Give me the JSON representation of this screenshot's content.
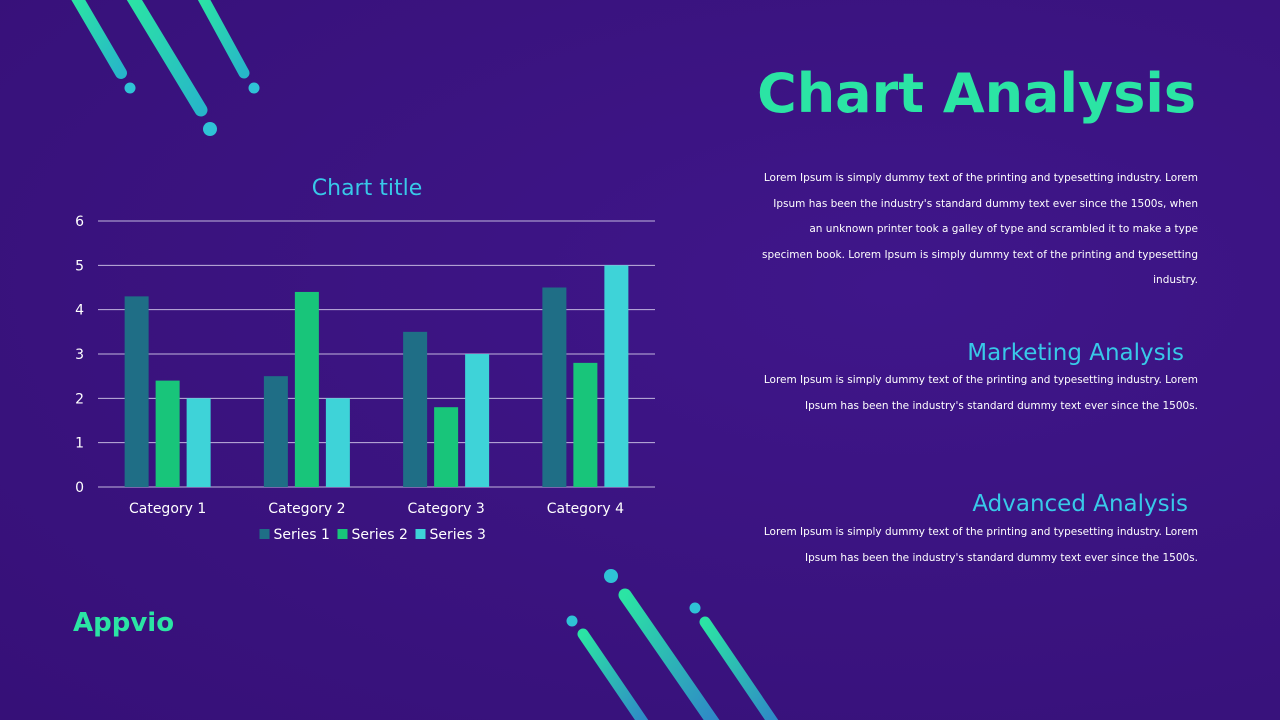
{
  "slide": {
    "title": "Chart Analysis",
    "intro_text": "Lorem Ipsum is simply dummy text of the printing and typesetting industry. Lorem Ipsum has been the industry's standard dummy text ever since the 1500s, when an unknown printer took a galley of type and scrambled it to make a type specimen book. Lorem Ipsum is simply dummy text of the printing and typesetting industry.",
    "sections": [
      {
        "heading": "Marketing Analysis",
        "text": "Lorem Ipsum is simply dummy text of the printing and typesetting industry. Lorem Ipsum has been the industry's standard dummy text ever since the 1500s."
      },
      {
        "heading": "Advanced Analysis",
        "text": "Lorem Ipsum is simply dummy text of the printing and typesetting industry. Lorem Ipsum has been the industry's standard dummy text ever since the 1500s."
      }
    ],
    "brand": "Appvio"
  },
  "colors": {
    "background": "#3a137f",
    "accent_green": "#2be4a4",
    "accent_cyan": "#38c9e8",
    "series_1": "#1f6e86",
    "series_2": "#18c57a",
    "series_3": "#3ed3d8"
  },
  "chart_data": {
    "type": "bar",
    "title": "Chart title",
    "categories": [
      "Category 1",
      "Category 2",
      "Category 3",
      "Category 4"
    ],
    "series": [
      {
        "name": "Series 1",
        "values": [
          4.3,
          2.5,
          3.5,
          4.5
        ]
      },
      {
        "name": "Series 2",
        "values": [
          2.4,
          4.4,
          1.8,
          2.8
        ]
      },
      {
        "name": "Series 3",
        "values": [
          2,
          2,
          3,
          5
        ]
      }
    ],
    "ylim": [
      0,
      6
    ],
    "yticks": [
      0,
      1,
      2,
      3,
      4,
      5,
      6
    ],
    "grid": true,
    "legend": "bottom"
  }
}
